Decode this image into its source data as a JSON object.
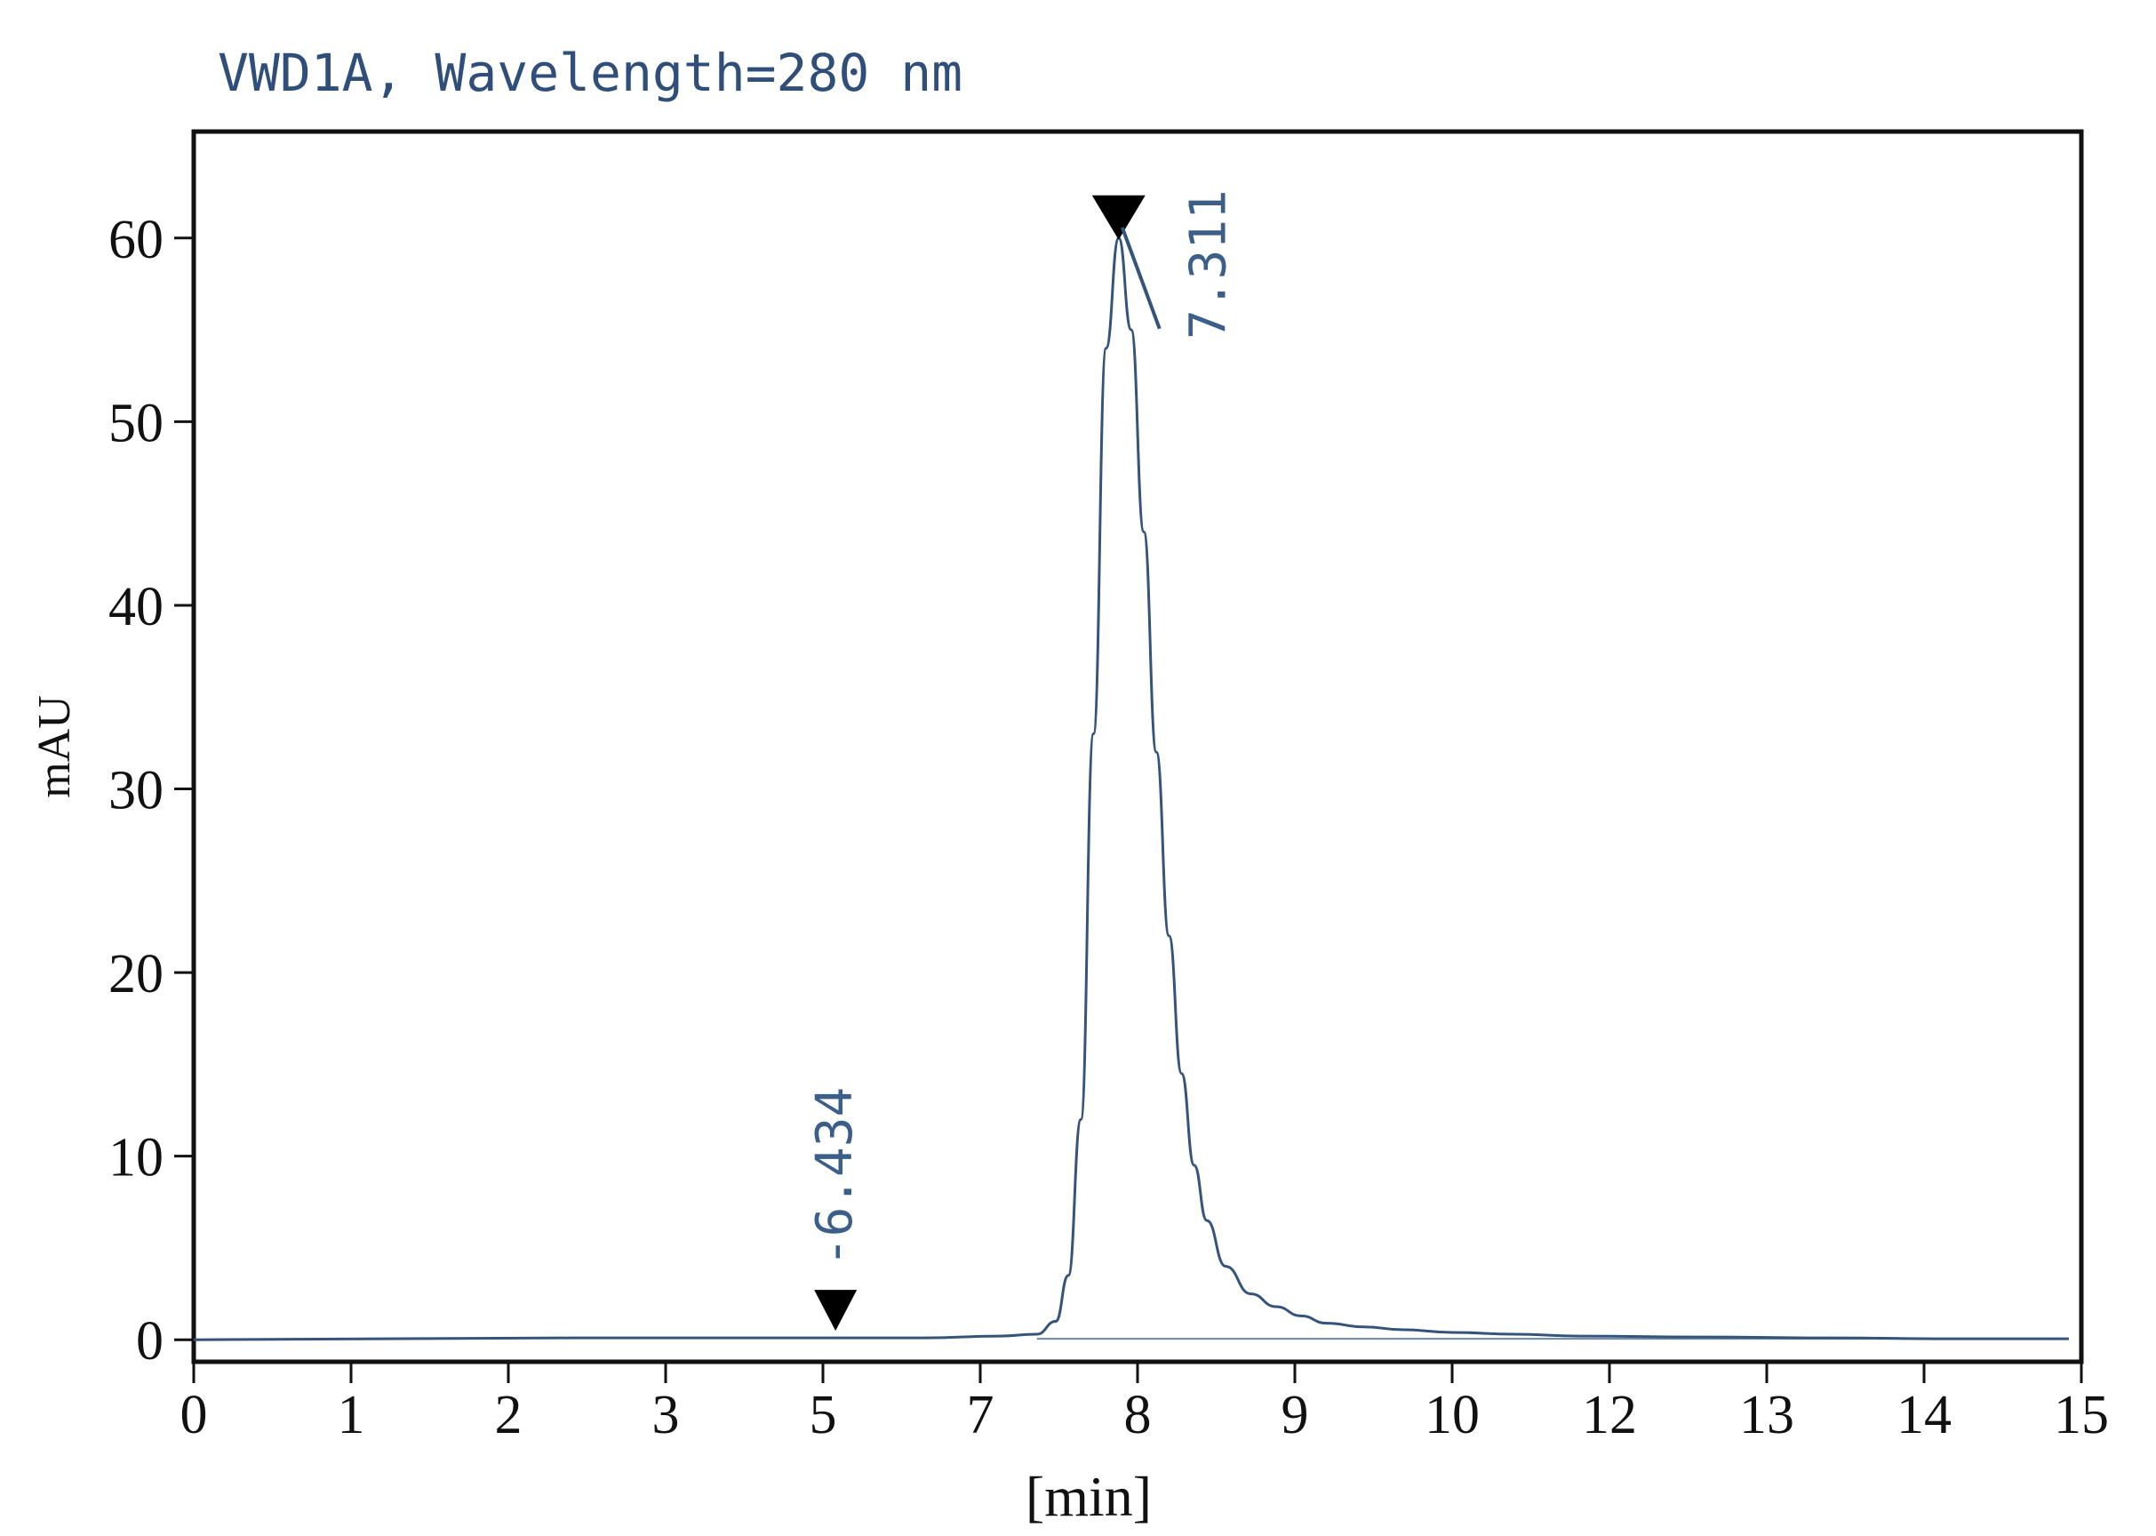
{
  "chart_data": {
    "type": "line",
    "title": "VWD1A, Wavelength=280 nm",
    "xlabel": "[min]",
    "ylabel": "mAU",
    "xlim": [
      0,
      15
    ],
    "ylim": [
      -1.2,
      65.8
    ],
    "x_tick_labels": [
      "0",
      "1",
      "2",
      "3",
      "5",
      "7",
      "8",
      "9",
      "10",
      "12",
      "13",
      "14",
      "15"
    ],
    "y_ticks": [
      0,
      10,
      20,
      30,
      40,
      50,
      60
    ],
    "grid": false,
    "legend": "none",
    "line_color": "#34547c",
    "series": [
      {
        "x": [
          0,
          3.0,
          5.0,
          5.8,
          6.4,
          6.7,
          6.85,
          6.95,
          7.05,
          7.15,
          7.25,
          7.35,
          7.45,
          7.55,
          7.65,
          7.75,
          7.85,
          7.95,
          8.05,
          8.2,
          8.4,
          8.6,
          8.8,
          9.0,
          9.3,
          9.6,
          10.0,
          10.5,
          11.0,
          12.0,
          13.0,
          14.0,
          14.9
        ],
        "values": [
          0,
          0.1,
          0.1,
          0.1,
          0.2,
          0.3,
          1.0,
          3.5,
          12.0,
          33.0,
          54.0,
          60.0,
          55.0,
          44.0,
          32.0,
          22.0,
          14.5,
          9.5,
          6.5,
          4.0,
          2.5,
          1.8,
          1.3,
          0.9,
          0.7,
          0.55,
          0.4,
          0.3,
          0.2,
          0.15,
          0.1,
          0.05,
          0.05
        ]
      }
    ],
    "baseline": {
      "x_start": 6.7,
      "x_end": 14.9,
      "y": 0.05
    },
    "annotations": [
      {
        "label": "6.434",
        "x": 5.1,
        "y": 0.2,
        "marker": "triangle-down"
      },
      {
        "label": "7.311",
        "x": 7.35,
        "y": 60.0,
        "marker": "triangle-down"
      }
    ]
  }
}
